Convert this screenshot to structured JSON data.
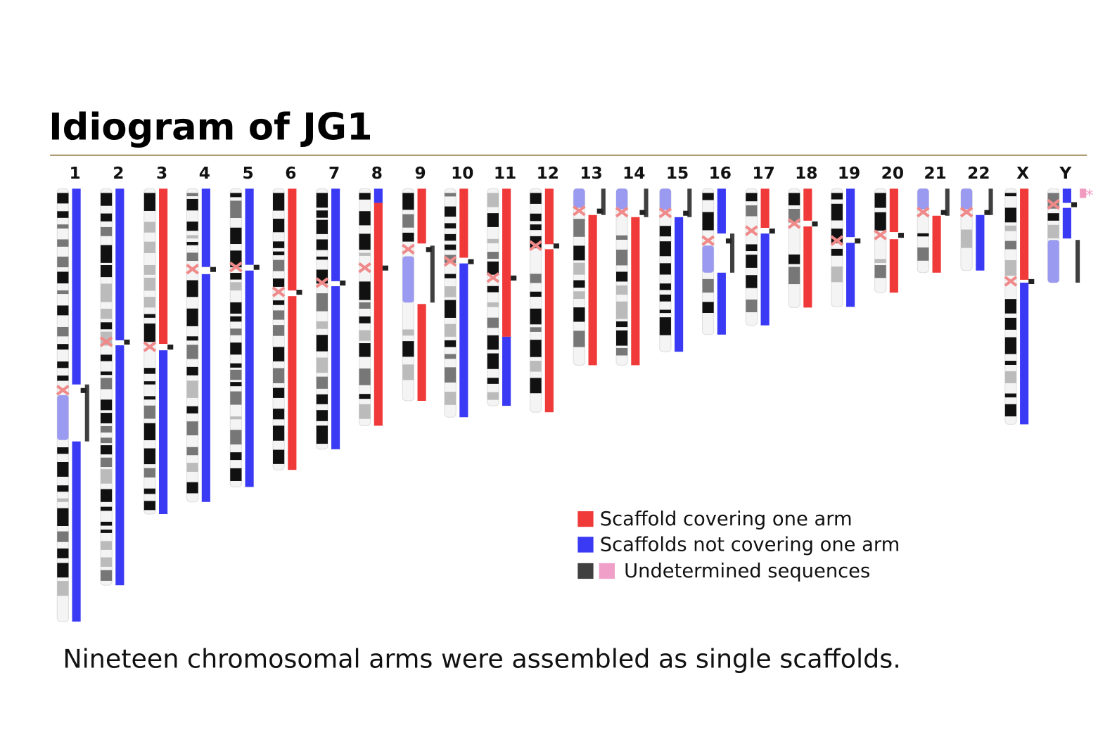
{
  "header": {
    "title": "Idiogram of JG1"
  },
  "chromosomes": [
    "1",
    "2",
    "3",
    "4",
    "5",
    "6",
    "7",
    "8",
    "9",
    "10",
    "11",
    "12",
    "13",
    "14",
    "15",
    "16",
    "17",
    "18",
    "19",
    "20",
    "21",
    "22",
    "X",
    "Y"
  ],
  "annotation": "*",
  "legend": [
    "Scaffold covering one arm",
    "Scaffolds not covering one arm",
    "Undetermined sequences"
  ],
  "caption": "Nineteen chromosomal arms were assembled as single scaffolds."
}
